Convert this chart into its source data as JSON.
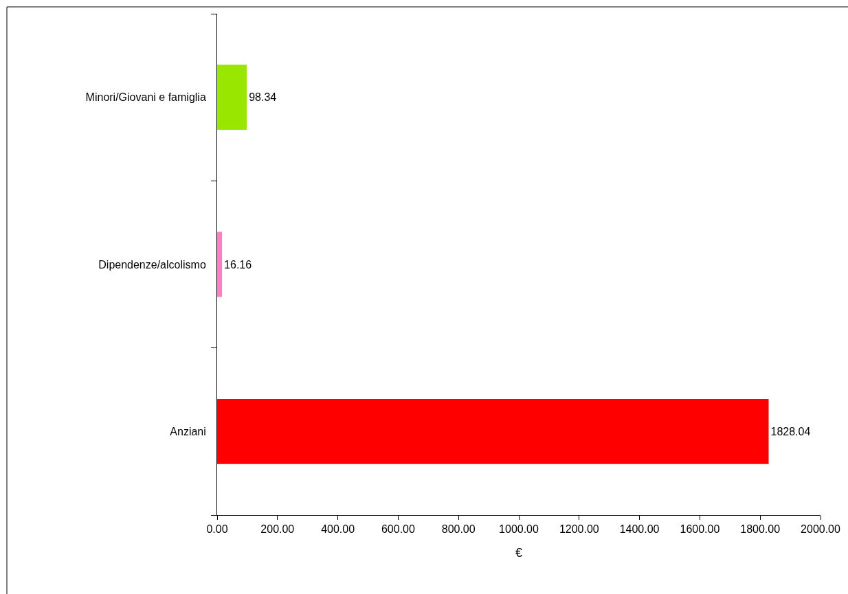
{
  "chart_data": {
    "type": "bar",
    "orientation": "horizontal",
    "categories": [
      "Minori/Giovani e famiglia",
      "Dipendenze/alcolismo",
      "Anziani"
    ],
    "values": [
      98.34,
      16.16,
      1828.04
    ],
    "colors": [
      "#99e600",
      "#ff80c0",
      "#ff0000"
    ],
    "xlabel": "€",
    "xlim": [
      0,
      2000
    ],
    "xticks": [
      {
        "value": 0,
        "label": "0.00"
      },
      {
        "value": 200,
        "label": "200.00"
      },
      {
        "value": 400,
        "label": "400.00"
      },
      {
        "value": 600,
        "label": "600.00"
      },
      {
        "value": 800,
        "label": "800.00"
      },
      {
        "value": 1000,
        "label": "1000.00"
      },
      {
        "value": 1200,
        "label": "1200.00"
      },
      {
        "value": 1400,
        "label": "1400.00"
      },
      {
        "value": 1600,
        "label": "1600.00"
      },
      {
        "value": 1800,
        "label": "1800.00"
      },
      {
        "value": 2000,
        "label": "2000.00"
      }
    ],
    "data_labels": true
  }
}
